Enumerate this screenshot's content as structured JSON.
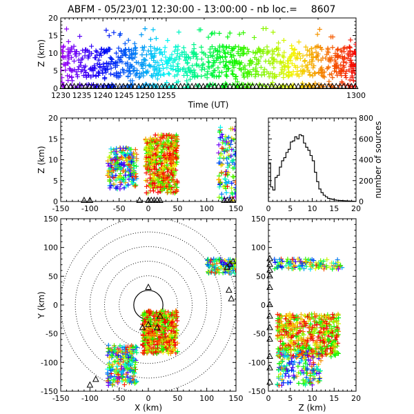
{
  "chart_data": [
    {
      "type": "scatter",
      "panel": "time-height",
      "title": "ABFM - 05/23/01 12:30:00 - 13:00:00 - nb loc.=",
      "count": "8607",
      "xlabel": "Time (UT)",
      "ylabel": "Z (km)",
      "xlim": [
        1230,
        1300
      ],
      "ylim": [
        0,
        20
      ],
      "xticks": [
        "1230",
        "1235",
        "1240",
        "1245",
        "1250",
        "1255",
        "1300"
      ],
      "yticks": [
        "0",
        "5",
        "10",
        "15",
        "20"
      ],
      "color_encoding": "rainbow colormap by time (purple = early, red = late)",
      "marker": "plus",
      "stations_marker": "triangle",
      "clusters": [
        {
          "x": [
            1230,
            1300
          ],
          "y": [
            3,
            12
          ]
        },
        {
          "x": [
            1230,
            1300
          ],
          "y": [
            1,
            17
          ]
        }
      ]
    },
    {
      "type": "scatter",
      "panel": "x-height",
      "xlabel": "",
      "ylabel": "Z (km)",
      "xlim": [
        -150,
        150
      ],
      "ylim": [
        0,
        20
      ],
      "xticks": [
        "-150",
        "-100",
        "-50",
        "0",
        "50",
        "100",
        "150"
      ],
      "yticks": [
        "0",
        "5",
        "10",
        "15",
        "20"
      ],
      "clusters": [
        {
          "x": [
            -70,
            -20
          ],
          "y": [
            3,
            13
          ]
        },
        {
          "x": [
            -5,
            50
          ],
          "y": [
            2,
            16
          ]
        },
        {
          "x": [
            120,
            150
          ],
          "y": [
            0,
            18
          ]
        }
      ],
      "stations_x": [
        -110,
        -100,
        -15,
        0,
        5,
        10,
        15,
        20,
        130,
        135,
        140,
        145
      ]
    },
    {
      "type": "bar",
      "panel": "height-histogram",
      "xlabel": "",
      "ylabel": "number of sources",
      "xlim": [
        0,
        20
      ],
      "ylim": [
        0,
        800
      ],
      "xticks": [
        "0",
        "5",
        "10",
        "15",
        "20"
      ],
      "yticks": [
        "0",
        "200",
        "400",
        "600",
        "800"
      ],
      "bin_width": 0.5,
      "bins_start": 0,
      "values": [
        370,
        140,
        110,
        230,
        250,
        330,
        390,
        420,
        470,
        500,
        570,
        580,
        620,
        600,
        640,
        630,
        560,
        520,
        490,
        440,
        390,
        280,
        190,
        120,
        85,
        60,
        45,
        30,
        25,
        20,
        15,
        12,
        10,
        9,
        8,
        6,
        5,
        4,
        3,
        2
      ]
    },
    {
      "type": "scatter",
      "panel": "plan-view",
      "xlabel": "X (km)",
      "ylabel": "Y (km)",
      "xlim": [
        -150,
        150
      ],
      "ylim": [
        -150,
        150
      ],
      "xticks": [
        "-150",
        "-100",
        "-50",
        "0",
        "50",
        "100",
        "150"
      ],
      "yticks": [
        "-150",
        "-100",
        "-50",
        "0",
        "50",
        "100",
        "150"
      ],
      "range_rings_km": [
        25,
        50,
        75,
        100,
        125,
        150
      ],
      "solid_ring_km": 25,
      "clusters": [
        {
          "x": [
            -70,
            -20
          ],
          "y": [
            -140,
            -70
          ]
        },
        {
          "x": [
            -10,
            50
          ],
          "y": [
            -85,
            -10
          ]
        },
        {
          "x": [
            100,
            150
          ],
          "y": [
            55,
            80
          ]
        }
      ],
      "stations": [
        [
          0,
          30
        ],
        [
          -10,
          -40
        ],
        [
          0,
          -35
        ],
        [
          15,
          -40
        ],
        [
          20,
          -20
        ],
        [
          -100,
          -140
        ],
        [
          -90,
          -130
        ],
        [
          140,
          70
        ],
        [
          145,
          75
        ],
        [
          135,
          65
        ],
        [
          138,
          25
        ],
        [
          142,
          10
        ]
      ]
    },
    {
      "type": "scatter",
      "panel": "height-y",
      "xlabel": "Z (km)",
      "ylabel": "",
      "xlim": [
        0,
        20
      ],
      "ylim": [
        -150,
        150
      ],
      "xticks": [
        "0",
        "5",
        "10",
        "15",
        "20"
      ],
      "yticks": [
        "-150",
        "-100",
        "-50",
        "0",
        "50",
        "100",
        "150"
      ],
      "clusters": [
        {
          "x": [
            1,
            17
          ],
          "y": [
            62,
            80
          ]
        },
        {
          "x": [
            2,
            16
          ],
          "y": [
            -90,
            -15
          ]
        },
        {
          "x": [
            2,
            12
          ],
          "y": [
            -140,
            -80
          ]
        }
      ],
      "stations_y": [
        80,
        70,
        60,
        50,
        30,
        0,
        -20,
        -40,
        -60,
        -90,
        -110,
        -135
      ]
    }
  ]
}
